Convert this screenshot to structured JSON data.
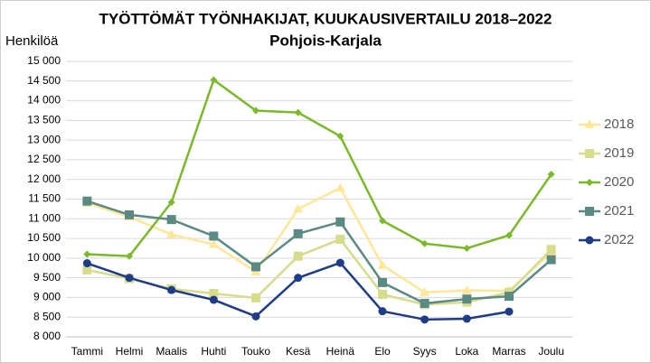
{
  "chart_data": {
    "type": "line",
    "title": "TYÖTTÖMÄT TYÖNHAKIJAT, KUUKAUSIVERTAILU 2018–2022",
    "subtitle": "Pohjois-Karjala",
    "y_label": "Henkilöä",
    "categories": [
      "Tammi",
      "Helmi",
      "Maalis",
      "Huhti",
      "Touko",
      "Kesä",
      "Heinä",
      "Elo",
      "Syys",
      "Loka",
      "Marras",
      "Joulu"
    ],
    "series": [
      {
        "name": "2018",
        "color": "#ffe699",
        "marker": "triangle",
        "values": [
          11400,
          11050,
          10600,
          10350,
          9650,
          11250,
          11780,
          9820,
          9130,
          9180,
          9170,
          10150
        ]
      },
      {
        "name": "2019",
        "color": "#d6dc8c",
        "marker": "square",
        "values": [
          9700,
          9480,
          9220,
          9100,
          8990,
          10050,
          10480,
          9080,
          8820,
          8880,
          9130,
          10220
        ]
      },
      {
        "name": "2020",
        "color": "#7ab929",
        "marker": "diamond",
        "values": [
          10100,
          10050,
          11420,
          14530,
          13750,
          13700,
          13100,
          10950,
          10370,
          10250,
          10580,
          12130
        ]
      },
      {
        "name": "2021",
        "color": "#5b8a83",
        "marker": "square",
        "values": [
          11450,
          11100,
          10980,
          10560,
          9780,
          10620,
          10920,
          9380,
          8850,
          8960,
          9030,
          9960
        ]
      },
      {
        "name": "2022",
        "color": "#1f3c88",
        "marker": "circle",
        "values": [
          9870,
          9500,
          9190,
          8940,
          8520,
          9500,
          9880,
          8650,
          8440,
          8460,
          8640,
          null
        ]
      }
    ],
    "ylim": [
      8000,
      15000
    ],
    "yticks": [
      {
        "value": 8000,
        "label": "8 000"
      },
      {
        "value": 8500,
        "label": "8 500"
      },
      {
        "value": 9000,
        "label": "9 000"
      },
      {
        "value": 9500,
        "label": "9 500"
      },
      {
        "value": 10000,
        "label": "10 000"
      },
      {
        "value": 10500,
        "label": "10 500"
      },
      {
        "value": 11000,
        "label": "11 000"
      },
      {
        "value": 11500,
        "label": "11 500"
      },
      {
        "value": 12000,
        "label": "12 000"
      },
      {
        "value": 12500,
        "label": "12 500"
      },
      {
        "value": 13000,
        "label": "13 000"
      },
      {
        "value": 13500,
        "label": "13 500"
      },
      {
        "value": 14000,
        "label": "14 000"
      },
      {
        "value": 14500,
        "label": "14 500"
      },
      {
        "value": 15000,
        "label": "15 000"
      }
    ],
    "grid": true,
    "legend": "right"
  }
}
